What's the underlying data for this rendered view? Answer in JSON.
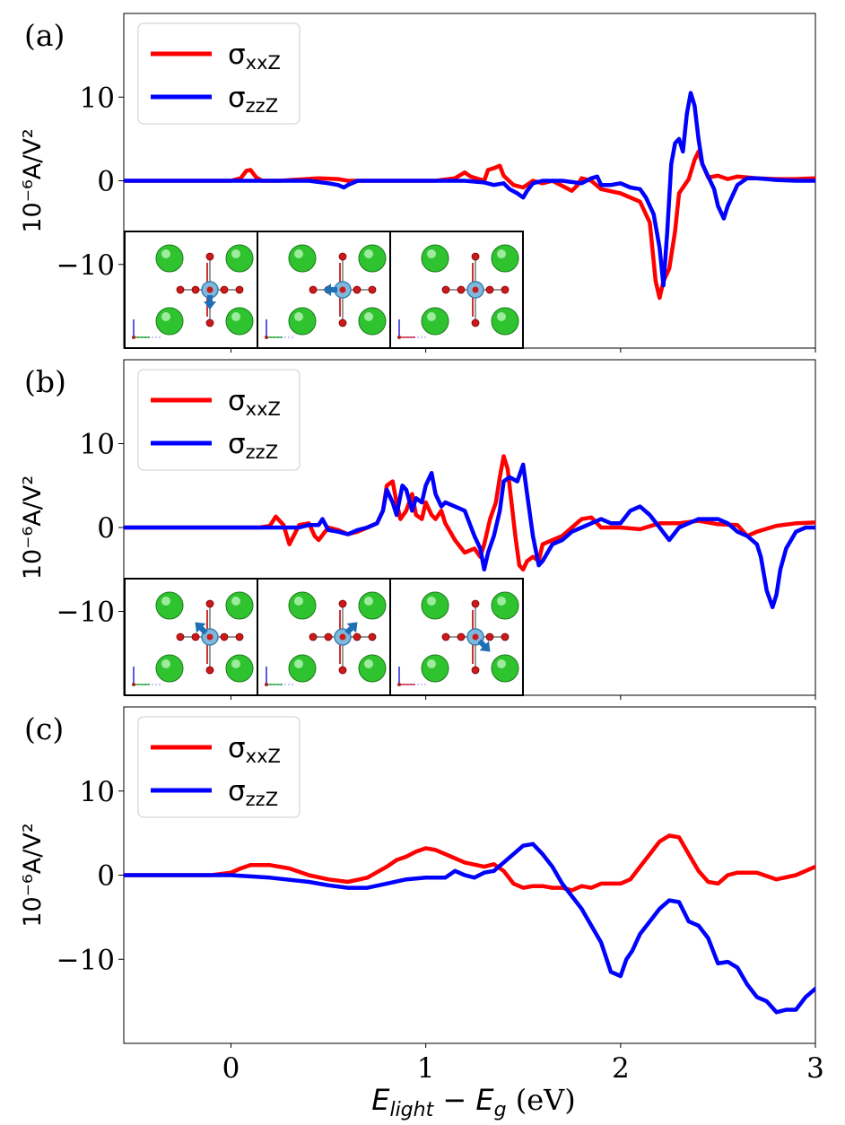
{
  "colors": {
    "red": "#ff0000",
    "blue": "#0000ff",
    "green": "#2fc42f",
    "oxygen": "#cc1a1a",
    "ti": "#7fb8dd",
    "arrow": "#1f6fb5"
  },
  "xlabel": {
    "main": "E",
    "sub1": "light",
    "minus": " − ",
    "main2": "E",
    "sub2": "g",
    "unit": " (eV)"
  },
  "xticks": [
    "0",
    "1",
    "2",
    "3"
  ],
  "xrange": [
    -0.55,
    3.0
  ],
  "yticks": [
    "10",
    "0",
    "−10"
  ],
  "ylabel": "10⁻⁶A/V²",
  "panels": [
    {
      "label": "(a)",
      "legend": [
        {
          "text": "σ",
          "sub": "xxZ"
        },
        {
          "text": "σ",
          "sub": "zzZ"
        }
      ],
      "insets": [
        "down-arrow",
        "left-arrow",
        "none"
      ]
    },
    {
      "label": "(b)",
      "legend": [
        {
          "text": "σ",
          "sub": "xxZ"
        },
        {
          "text": "σ",
          "sub": "zzZ"
        }
      ],
      "insets": [
        "up-left-arrow",
        "up-right-arrow",
        "down-right-arrow"
      ]
    },
    {
      "label": "(c)",
      "legend": [
        {
          "text": "σ",
          "sub": "xxZ"
        },
        {
          "text": "σ",
          "sub": "zzZ"
        }
      ],
      "insets": []
    }
  ],
  "chart_data": [
    {
      "type": "line",
      "title": "(a)",
      "xlabel": "E_light − E_g (eV)",
      "ylabel": "10^-6 A/V^2",
      "xlim": [
        -0.55,
        3.0
      ],
      "ylim": [
        -20,
        20
      ],
      "series": [
        {
          "name": "σxxZ",
          "color": "red",
          "x": [
            -0.55,
            0.0,
            0.05,
            0.08,
            0.1,
            0.13,
            0.16,
            0.25,
            0.45,
            0.55,
            0.6,
            0.7,
            0.9,
            1.05,
            1.15,
            1.2,
            1.23,
            1.3,
            1.32,
            1.35,
            1.38,
            1.4,
            1.45,
            1.5,
            1.55,
            1.6,
            1.65,
            1.7,
            1.75,
            1.78,
            1.8,
            1.85,
            1.9,
            2.0,
            2.1,
            2.15,
            2.18,
            2.2,
            2.22,
            2.25,
            2.28,
            2.3,
            2.35,
            2.38,
            2.4,
            2.42,
            2.45,
            2.5,
            2.55,
            2.6,
            2.7,
            2.8,
            2.9,
            3.0
          ],
          "y": [
            0,
            0,
            0.3,
            1.2,
            1.3,
            0.4,
            0,
            0,
            0.3,
            0.2,
            0,
            0,
            0,
            0,
            0.3,
            1.0,
            0.5,
            0,
            1.3,
            1.5,
            1.8,
            0.6,
            -0.5,
            -0.8,
            0,
            -0.3,
            0,
            -0.6,
            -1.2,
            -0.5,
            0.3,
            0,
            -1.0,
            -1.5,
            -2.5,
            -5,
            -12,
            -14,
            -12,
            -10.5,
            -6,
            -1.5,
            0.2,
            2.5,
            3.5,
            2.0,
            0.4,
            0.6,
            0.2,
            0.5,
            0.3,
            0.2,
            0.2,
            0.3
          ]
        },
        {
          "name": "σzzZ",
          "color": "blue",
          "x": [
            -0.55,
            0.4,
            0.5,
            0.55,
            0.58,
            0.6,
            0.65,
            0.8,
            1.0,
            1.2,
            1.3,
            1.35,
            1.4,
            1.43,
            1.47,
            1.5,
            1.52,
            1.55,
            1.6,
            1.7,
            1.8,
            1.85,
            1.88,
            1.9,
            1.95,
            2.0,
            2.05,
            2.1,
            2.13,
            2.17,
            2.2,
            2.22,
            2.24,
            2.26,
            2.28,
            2.3,
            2.32,
            2.34,
            2.36,
            2.38,
            2.4,
            2.42,
            2.45,
            2.48,
            2.5,
            2.53,
            2.55,
            2.6,
            2.65,
            2.7,
            2.75,
            2.8,
            2.9,
            3.0
          ],
          "y": [
            0,
            0,
            -0.3,
            -0.5,
            -0.8,
            -0.5,
            0,
            0,
            0,
            0,
            -0.2,
            -0.5,
            -0.3,
            -1.0,
            -1.5,
            -2.0,
            -1.2,
            -0.3,
            0,
            0,
            -0.3,
            0.3,
            0.5,
            -0.5,
            -0.5,
            -0.3,
            -0.8,
            -1.0,
            -2.0,
            -4.0,
            -8.0,
            -12.5,
            -6,
            2.0,
            4.5,
            5.0,
            3.5,
            8.0,
            10.5,
            9.0,
            5.0,
            2.0,
            0.5,
            -1.0,
            -3.0,
            -4.5,
            -3.0,
            -0.5,
            0.3,
            0.3,
            0.2,
            0.1,
            0,
            0
          ]
        }
      ]
    },
    {
      "type": "line",
      "title": "(b)",
      "xlabel": "E_light − E_g (eV)",
      "ylabel": "10^-6 A/V^2",
      "xlim": [
        -0.55,
        3.0
      ],
      "ylim": [
        -20,
        20
      ],
      "series": [
        {
          "name": "σxxZ",
          "color": "red",
          "x": [
            -0.55,
            0.0,
            0.1,
            0.15,
            0.2,
            0.23,
            0.27,
            0.3,
            0.35,
            0.4,
            0.43,
            0.45,
            0.5,
            0.55,
            0.6,
            0.65,
            0.7,
            0.75,
            0.78,
            0.8,
            0.83,
            0.85,
            0.87,
            0.9,
            0.93,
            0.95,
            0.98,
            1.0,
            1.03,
            1.05,
            1.08,
            1.1,
            1.15,
            1.2,
            1.25,
            1.28,
            1.3,
            1.33,
            1.36,
            1.38,
            1.4,
            1.42,
            1.44,
            1.46,
            1.48,
            1.5,
            1.52,
            1.55,
            1.58,
            1.6,
            1.65,
            1.7,
            1.75,
            1.8,
            1.85,
            1.9,
            2.0,
            2.1,
            2.2,
            2.3,
            2.4,
            2.5,
            2.6,
            2.65,
            2.7,
            2.8,
            2.9,
            3.0
          ],
          "y": [
            0,
            0,
            0,
            0,
            0.2,
            1.3,
            0.3,
            -2.0,
            0.3,
            0.5,
            -1.0,
            -1.5,
            0,
            -0.3,
            -0.8,
            -0.5,
            0,
            0.5,
            2.0,
            5.0,
            5.5,
            3.0,
            1.0,
            2.0,
            4.0,
            1.5,
            1.0,
            3.0,
            1.5,
            1.0,
            2.0,
            0.5,
            -1.5,
            -3.0,
            -2.5,
            -3.5,
            -2.0,
            1.0,
            3.0,
            6.0,
            8.5,
            7.0,
            3.0,
            -1.0,
            -4.5,
            -5.0,
            -4.0,
            -3.5,
            -4.0,
            -2.0,
            -1.5,
            -1.0,
            0,
            1.0,
            1.2,
            0,
            0,
            -0.2,
            0.5,
            0.5,
            0.8,
            0.4,
            0.3,
            -1.0,
            -0.5,
            0.2,
            0.5,
            0.6
          ]
        },
        {
          "name": "σzzZ",
          "color": "blue",
          "x": [
            -0.55,
            0.0,
            0.2,
            0.3,
            0.35,
            0.4,
            0.45,
            0.47,
            0.5,
            0.55,
            0.6,
            0.65,
            0.7,
            0.75,
            0.78,
            0.8,
            0.83,
            0.85,
            0.88,
            0.9,
            0.93,
            0.95,
            0.98,
            1.0,
            1.03,
            1.05,
            1.08,
            1.1,
            1.15,
            1.2,
            1.25,
            1.28,
            1.3,
            1.32,
            1.35,
            1.38,
            1.4,
            1.43,
            1.47,
            1.5,
            1.52,
            1.55,
            1.58,
            1.6,
            1.65,
            1.7,
            1.75,
            1.8,
            1.85,
            1.9,
            1.95,
            2.0,
            2.05,
            2.1,
            2.15,
            2.2,
            2.25,
            2.3,
            2.35,
            2.4,
            2.45,
            2.5,
            2.55,
            2.6,
            2.65,
            2.7,
            2.72,
            2.75,
            2.78,
            2.8,
            2.82,
            2.85,
            2.9,
            2.95,
            3.0
          ],
          "y": [
            0,
            0,
            0,
            0,
            0,
            0.3,
            0.3,
            1.0,
            -0.3,
            -0.5,
            -0.8,
            -0.3,
            0,
            0.5,
            2.0,
            4.5,
            3.0,
            1.5,
            5.0,
            4.5,
            2.0,
            3.5,
            3.0,
            5.0,
            6.5,
            4.0,
            2.5,
            3.0,
            2.5,
            2.0,
            -1.0,
            -2.5,
            -5.0,
            -3.0,
            -1.0,
            2.0,
            5.5,
            6.0,
            5.5,
            7.5,
            4.0,
            -1.0,
            -4.5,
            -4.0,
            -2.0,
            -1.5,
            -0.5,
            0,
            0.5,
            1.0,
            0.5,
            0.5,
            2.0,
            2.5,
            1.5,
            0,
            -1.5,
            0,
            0.5,
            1.0,
            1.0,
            1.0,
            0.5,
            -0.5,
            -1.0,
            -2.0,
            -3.5,
            -7.5,
            -9.5,
            -8.0,
            -5.0,
            -2.5,
            -0.5,
            0,
            0
          ]
        }
      ]
    },
    {
      "type": "line",
      "title": "(c)",
      "xlabel": "E_light − E_g (eV)",
      "ylabel": "10^-6 A/V^2",
      "xlim": [
        -0.55,
        3.0
      ],
      "ylim": [
        -20,
        20
      ],
      "series": [
        {
          "name": "σxxZ",
          "color": "red",
          "x": [
            -0.55,
            -0.1,
            0.0,
            0.05,
            0.1,
            0.2,
            0.3,
            0.4,
            0.5,
            0.6,
            0.7,
            0.8,
            0.85,
            0.9,
            0.95,
            1.0,
            1.05,
            1.1,
            1.2,
            1.3,
            1.35,
            1.4,
            1.45,
            1.5,
            1.55,
            1.6,
            1.65,
            1.7,
            1.75,
            1.8,
            1.85,
            1.9,
            1.95,
            2.0,
            2.05,
            2.1,
            2.15,
            2.2,
            2.25,
            2.3,
            2.35,
            2.4,
            2.45,
            2.5,
            2.55,
            2.6,
            2.7,
            2.8,
            2.9,
            3.0
          ],
          "y": [
            0,
            0,
            0.3,
            0.8,
            1.2,
            1.2,
            0.8,
            0,
            -0.5,
            -0.8,
            -0.3,
            1.0,
            1.8,
            2.2,
            2.8,
            3.2,
            3.0,
            2.5,
            1.5,
            1.0,
            1.3,
            0.5,
            -1.0,
            -1.5,
            -1.3,
            -1.3,
            -1.5,
            -1.5,
            -1.8,
            -1.3,
            -1.5,
            -1.0,
            -1.0,
            -1.0,
            -0.5,
            1.0,
            2.5,
            4.0,
            4.7,
            4.5,
            2.5,
            0.5,
            -0.8,
            -1.0,
            0,
            0.3,
            0.3,
            -0.5,
            0,
            1.0
          ]
        },
        {
          "name": "σzzZ",
          "color": "blue",
          "x": [
            -0.55,
            0.0,
            0.2,
            0.4,
            0.5,
            0.6,
            0.7,
            0.8,
            0.9,
            1.0,
            1.1,
            1.15,
            1.2,
            1.25,
            1.3,
            1.35,
            1.4,
            1.45,
            1.5,
            1.55,
            1.6,
            1.65,
            1.7,
            1.75,
            1.8,
            1.85,
            1.9,
            1.95,
            2.0,
            2.03,
            2.06,
            2.1,
            2.15,
            2.2,
            2.25,
            2.3,
            2.35,
            2.4,
            2.45,
            2.5,
            2.55,
            2.6,
            2.65,
            2.7,
            2.75,
            2.8,
            2.85,
            2.9,
            2.95,
            3.0
          ],
          "y": [
            0,
            0,
            -0.3,
            -0.8,
            -1.2,
            -1.5,
            -1.5,
            -1.0,
            -0.5,
            -0.3,
            -0.3,
            0.5,
            0,
            -0.3,
            0.3,
            0.5,
            1.5,
            2.5,
            3.5,
            3.7,
            2.5,
            1.0,
            -1.0,
            -2.5,
            -4.0,
            -6.0,
            -8.0,
            -11.5,
            -12.0,
            -10.0,
            -9.0,
            -7.0,
            -5.5,
            -4.0,
            -3.0,
            -3.2,
            -5.5,
            -6.0,
            -7.5,
            -10.5,
            -10.3,
            -11.0,
            -13.0,
            -14.5,
            -15.0,
            -16.3,
            -16.0,
            -16.0,
            -14.5,
            -13.5
          ]
        }
      ]
    }
  ]
}
